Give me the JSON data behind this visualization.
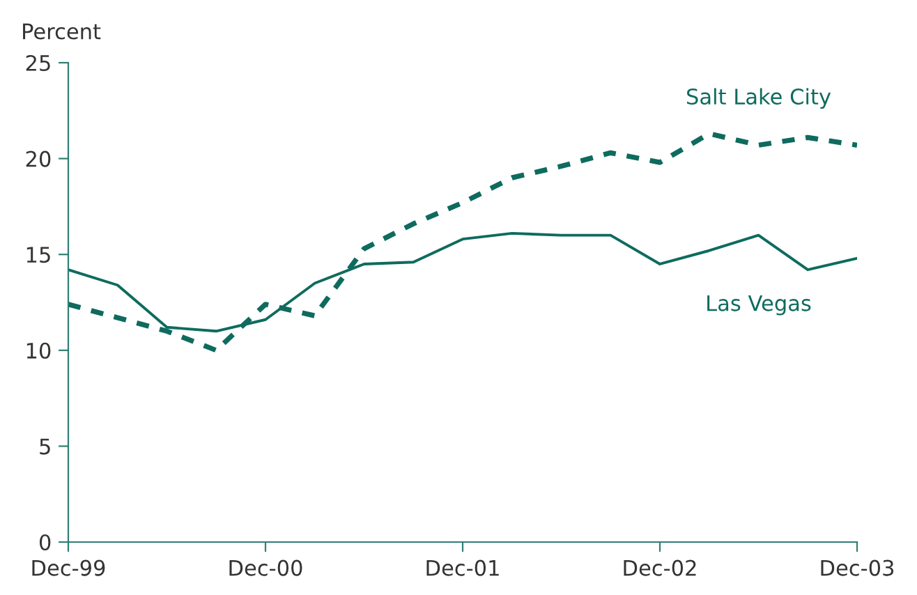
{
  "chart_data": {
    "type": "line",
    "ylabel": "Percent",
    "categories": [
      "Dec-99",
      null,
      null,
      null,
      "Dec-00",
      null,
      null,
      null,
      "Dec-01",
      null,
      null,
      null,
      "Dec-02",
      null,
      null,
      null,
      "Dec-03"
    ],
    "series": [
      {
        "name": "Salt Lake City",
        "color": "#0e6b5e",
        "line_style": "dotted",
        "values": [
          12.4,
          11.7,
          11.0,
          10.0,
          12.4,
          11.8,
          15.3,
          16.6,
          17.7,
          19.0,
          19.6,
          20.3,
          19.8,
          21.3,
          20.7,
          21.1,
          20.7
        ]
      },
      {
        "name": "Las Vegas",
        "color": "#0e6b5e",
        "line_style": "solid",
        "values": [
          14.2,
          13.4,
          11.2,
          11.0,
          11.6,
          13.5,
          14.5,
          14.6,
          15.8,
          16.1,
          16.0,
          16.0,
          14.5,
          15.2,
          16.0,
          14.2,
          14.8
        ]
      }
    ],
    "ylim": [
      0,
      25
    ],
    "yticks": [
      0,
      5,
      10,
      15,
      20,
      25
    ],
    "grid": false,
    "legend": false,
    "marker": "none"
  }
}
